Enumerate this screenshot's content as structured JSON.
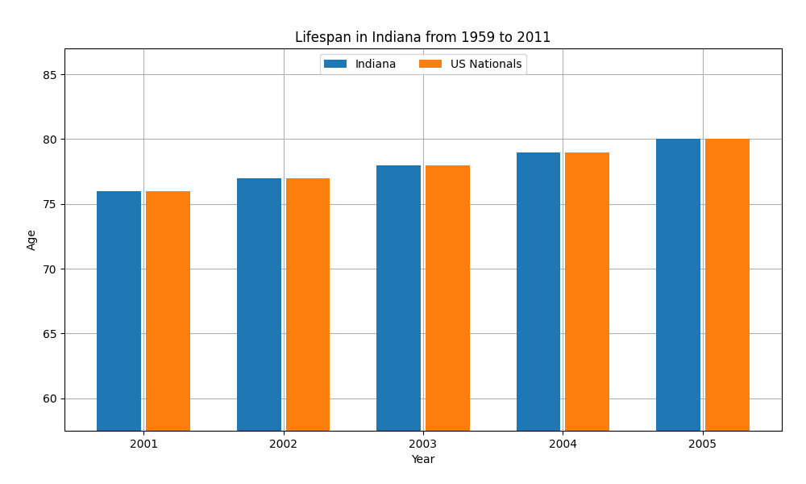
{
  "chart_data": {
    "type": "bar",
    "title": "Lifespan in Indiana from 1959 to 2011",
    "xlabel": "Year",
    "ylabel": "Age",
    "categories": [
      "2001",
      "2002",
      "2003",
      "2004",
      "2005"
    ],
    "series": [
      {
        "name": "Indiana",
        "values": [
          76,
          77,
          78,
          79,
          80
        ]
      },
      {
        "name": "US Nationals",
        "values": [
          76,
          77,
          78,
          79,
          80
        ]
      }
    ],
    "ylim": [
      57.5,
      87
    ],
    "yticks": [
      60,
      65,
      70,
      75,
      80,
      85
    ],
    "grid": true,
    "legend": "upper center"
  }
}
